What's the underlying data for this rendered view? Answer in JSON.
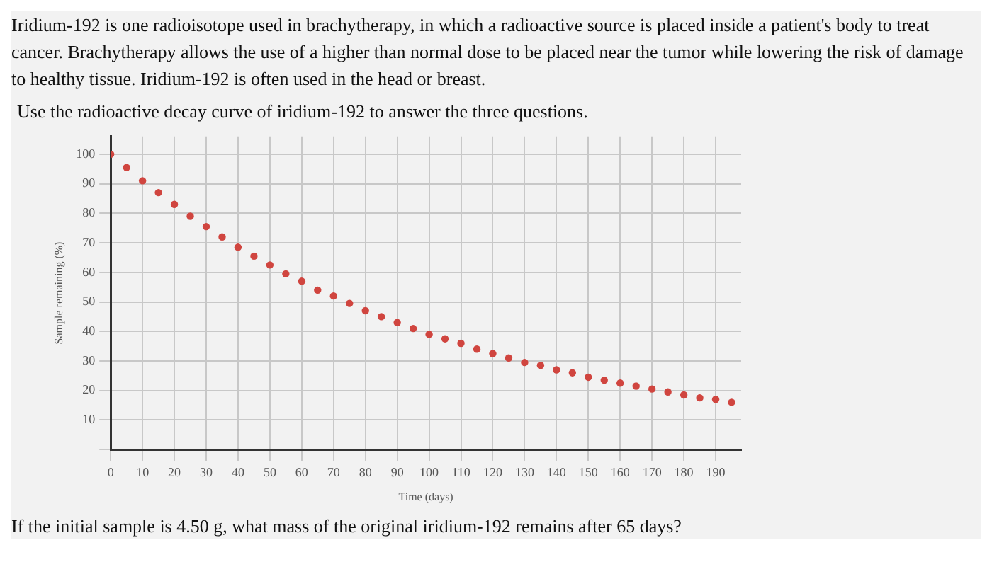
{
  "chart_data": {
    "type": "scatter",
    "title": "Iridium-192 is one radioisotope used in brachytherapy, in which a radioactive source is placed inside a patient's body to treat cancer. Brachytherapy allows the use of a higher than normal dose to be placed near the tumor while lowering the risk of damage to healthy tissue. Iridium-192 is often used in the head or breast.",
    "subtitle": "Use the radioactive decay curve of iridium-192 to answer the three questions.",
    "annotations": [
      "If the initial sample is 4.50 g, what mass of the original iridium-192 remains after 65 days?"
    ],
    "xlabel": "Time (days)",
    "ylabel": "Sample remaining (%)",
    "x": [
      0,
      5,
      10,
      15,
      20,
      25,
      30,
      35,
      40,
      45,
      50,
      55,
      60,
      65,
      70,
      75,
      80,
      85,
      90,
      95,
      100,
      105,
      110,
      115,
      120,
      125,
      130,
      135,
      140,
      145,
      150,
      155,
      160,
      165,
      170,
      175,
      180,
      185,
      190,
      195
    ],
    "series": [
      {
        "color": "#d0453f",
        "values": [
          100,
          95.5,
          91,
          87,
          83,
          79,
          75.5,
          72,
          68.5,
          65.5,
          62.5,
          59.5,
          57,
          54,
          52,
          49.5,
          47,
          45,
          43,
          41,
          39,
          37.5,
          36,
          34,
          32.5,
          31,
          29.5,
          28.5,
          27,
          26,
          24.5,
          23.5,
          22.5,
          21.5,
          20.5,
          19.5,
          18.5,
          17.5,
          17,
          16
        ]
      }
    ],
    "xlim": [
      0,
      198
    ],
    "xticks": [
      0,
      10,
      20,
      30,
      40,
      50,
      60,
      70,
      80,
      90,
      100,
      110,
      120,
      130,
      140,
      150,
      160,
      170,
      180,
      190
    ],
    "ylim": [
      0,
      106
    ],
    "yticks": [
      {
        "value": 0,
        "label": null
      },
      10,
      20,
      30,
      40,
      50,
      60,
      70,
      80,
      90,
      100
    ],
    "grid": true,
    "legend": false,
    "marker": "circle"
  }
}
